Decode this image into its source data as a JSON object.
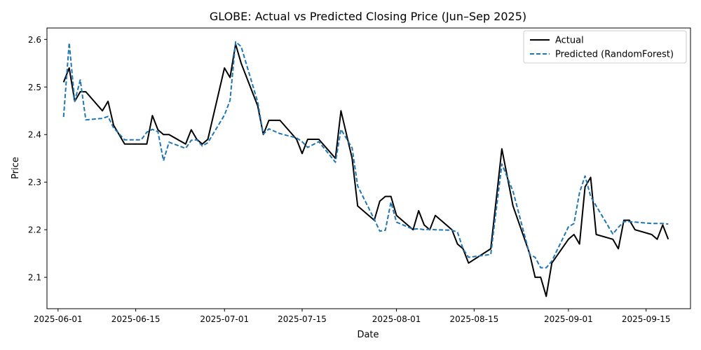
{
  "chart_data": {
    "type": "line",
    "title": "GLOBE: Actual vs Predicted Closing Price (Jun–Sep 2025)",
    "xlabel": "Date",
    "ylabel": "Price",
    "x_ticks": [
      "2025-06-01",
      "2025-06-15",
      "2025-07-01",
      "2025-07-15",
      "2025-08-01",
      "2025-08-15",
      "2025-09-01",
      "2025-09-15"
    ],
    "y_ticks": [
      "2.1",
      "2.2",
      "2.3",
      "2.4",
      "2.5",
      "2.6"
    ],
    "xlim": [
      "2025-05-30",
      "2025-09-23"
    ],
    "ylim": [
      2.034,
      2.624
    ],
    "grid": false,
    "legend_position": "top-right",
    "series": [
      {
        "name": "Actual",
        "color": "#000000",
        "style": "solid",
        "points": [
          [
            "2025-06-02",
            2.51
          ],
          [
            "2025-06-03",
            2.54
          ],
          [
            "2025-06-04",
            2.47
          ],
          [
            "2025-06-05",
            2.49
          ],
          [
            "2025-06-06",
            2.49
          ],
          [
            "2025-06-09",
            2.45
          ],
          [
            "2025-06-10",
            2.47
          ],
          [
            "2025-06-11",
            2.42
          ],
          [
            "2025-06-13",
            2.38
          ],
          [
            "2025-06-16",
            2.38
          ],
          [
            "2025-06-17",
            2.38
          ],
          [
            "2025-06-18",
            2.44
          ],
          [
            "2025-06-19",
            2.41
          ],
          [
            "2025-06-20",
            2.4
          ],
          [
            "2025-06-21",
            2.4
          ],
          [
            "2025-06-24",
            2.38
          ],
          [
            "2025-06-25",
            2.41
          ],
          [
            "2025-06-26",
            2.39
          ],
          [
            "2025-06-27",
            2.38
          ],
          [
            "2025-06-28",
            2.39
          ],
          [
            "2025-07-01",
            2.54
          ],
          [
            "2025-07-02",
            2.52
          ],
          [
            "2025-07-03",
            2.59
          ],
          [
            "2025-07-04",
            2.55
          ],
          [
            "2025-07-07",
            2.46
          ],
          [
            "2025-07-08",
            2.4
          ],
          [
            "2025-07-09",
            2.43
          ],
          [
            "2025-07-11",
            2.43
          ],
          [
            "2025-07-14",
            2.39
          ],
          [
            "2025-07-15",
            2.36
          ],
          [
            "2025-07-16",
            2.39
          ],
          [
            "2025-07-18",
            2.39
          ],
          [
            "2025-07-21",
            2.35
          ],
          [
            "2025-07-22",
            2.45
          ],
          [
            "2025-07-24",
            2.35
          ],
          [
            "2025-07-25",
            2.25
          ],
          [
            "2025-07-28",
            2.22
          ],
          [
            "2025-07-29",
            2.26
          ],
          [
            "2025-07-30",
            2.27
          ],
          [
            "2025-07-31",
            2.27
          ],
          [
            "2025-08-01",
            2.23
          ],
          [
            "2025-08-04",
            2.2
          ],
          [
            "2025-08-05",
            2.24
          ],
          [
            "2025-08-06",
            2.21
          ],
          [
            "2025-08-07",
            2.2
          ],
          [
            "2025-08-08",
            2.23
          ],
          [
            "2025-08-11",
            2.2
          ],
          [
            "2025-08-12",
            2.17
          ],
          [
            "2025-08-13",
            2.16
          ],
          [
            "2025-08-14",
            2.13
          ],
          [
            "2025-08-18",
            2.16
          ],
          [
            "2025-08-20",
            2.37
          ],
          [
            "2025-08-22",
            2.25
          ],
          [
            "2025-08-25",
            2.15
          ],
          [
            "2025-08-26",
            2.1
          ],
          [
            "2025-08-27",
            2.1
          ],
          [
            "2025-08-28",
            2.06
          ],
          [
            "2025-08-29",
            2.13
          ],
          [
            "2025-09-01",
            2.18
          ],
          [
            "2025-09-02",
            2.19
          ],
          [
            "2025-09-03",
            2.17
          ],
          [
            "2025-09-04",
            2.29
          ],
          [
            "2025-09-05",
            2.31
          ],
          [
            "2025-09-06",
            2.19
          ],
          [
            "2025-09-09",
            2.18
          ],
          [
            "2025-09-10",
            2.16
          ],
          [
            "2025-09-11",
            2.22
          ],
          [
            "2025-09-12",
            2.22
          ],
          [
            "2025-09-13",
            2.2
          ],
          [
            "2025-09-16",
            2.19
          ],
          [
            "2025-09-17",
            2.18
          ],
          [
            "2025-09-18",
            2.21
          ],
          [
            "2025-09-19",
            2.18
          ]
        ]
      },
      {
        "name": "Predicted (RandomForest)",
        "color": "#1f77b4",
        "style": "dashed",
        "points": [
          [
            "2025-06-02",
            2.437
          ],
          [
            "2025-06-03",
            2.593
          ],
          [
            "2025-06-04",
            2.47
          ],
          [
            "2025-06-05",
            2.515
          ],
          [
            "2025-06-06",
            2.431
          ],
          [
            "2025-06-09",
            2.434
          ],
          [
            "2025-06-10",
            2.438
          ],
          [
            "2025-06-11",
            2.414
          ],
          [
            "2025-06-13",
            2.389
          ],
          [
            "2025-06-16",
            2.389
          ],
          [
            "2025-06-17",
            2.405
          ],
          [
            "2025-06-18",
            2.411
          ],
          [
            "2025-06-19",
            2.406
          ],
          [
            "2025-06-20",
            2.345
          ],
          [
            "2025-06-21",
            2.384
          ],
          [
            "2025-06-24",
            2.371
          ],
          [
            "2025-06-25",
            2.388
          ],
          [
            "2025-06-26",
            2.389
          ],
          [
            "2025-06-27",
            2.376
          ],
          [
            "2025-06-28",
            2.383
          ],
          [
            "2025-07-01",
            2.441
          ],
          [
            "2025-07-02",
            2.472
          ],
          [
            "2025-07-03",
            2.595
          ],
          [
            "2025-07-04",
            2.585
          ],
          [
            "2025-07-07",
            2.468
          ],
          [
            "2025-07-08",
            2.401
          ],
          [
            "2025-07-09",
            2.412
          ],
          [
            "2025-07-11",
            2.402
          ],
          [
            "2025-07-14",
            2.393
          ],
          [
            "2025-07-15",
            2.385
          ],
          [
            "2025-07-16",
            2.373
          ],
          [
            "2025-07-18",
            2.385
          ],
          [
            "2025-07-21",
            2.342
          ],
          [
            "2025-07-22",
            2.411
          ],
          [
            "2025-07-24",
            2.372
          ],
          [
            "2025-07-25",
            2.292
          ],
          [
            "2025-07-28",
            2.222
          ],
          [
            "2025-07-29",
            2.197
          ],
          [
            "2025-07-30",
            2.199
          ],
          [
            "2025-07-31",
            2.258
          ],
          [
            "2025-08-01",
            2.216
          ],
          [
            "2025-08-04",
            2.201
          ],
          [
            "2025-08-05",
            2.202
          ],
          [
            "2025-08-06",
            2.2
          ],
          [
            "2025-08-07",
            2.201
          ],
          [
            "2025-08-08",
            2.2
          ],
          [
            "2025-08-11",
            2.199
          ],
          [
            "2025-08-12",
            2.195
          ],
          [
            "2025-08-13",
            2.16
          ],
          [
            "2025-08-14",
            2.142
          ],
          [
            "2025-08-18",
            2.148
          ],
          [
            "2025-08-20",
            2.338
          ],
          [
            "2025-08-22",
            2.281
          ],
          [
            "2025-08-25",
            2.148
          ],
          [
            "2025-08-26",
            2.142
          ],
          [
            "2025-08-27",
            2.12
          ],
          [
            "2025-08-28",
            2.12
          ],
          [
            "2025-08-29",
            2.134
          ],
          [
            "2025-09-01",
            2.206
          ],
          [
            "2025-09-02",
            2.213
          ],
          [
            "2025-09-03",
            2.278
          ],
          [
            "2025-09-04",
            2.313
          ],
          [
            "2025-09-05",
            2.27
          ],
          [
            "2025-09-06",
            2.25
          ],
          [
            "2025-09-09",
            2.191
          ],
          [
            "2025-09-10",
            2.205
          ],
          [
            "2025-09-11",
            2.217
          ],
          [
            "2025-09-12",
            2.217
          ],
          [
            "2025-09-13",
            2.216
          ],
          [
            "2025-09-16",
            2.213
          ],
          [
            "2025-09-17",
            2.213
          ],
          [
            "2025-09-18",
            2.213
          ],
          [
            "2025-09-19",
            2.212
          ]
        ]
      }
    ]
  }
}
